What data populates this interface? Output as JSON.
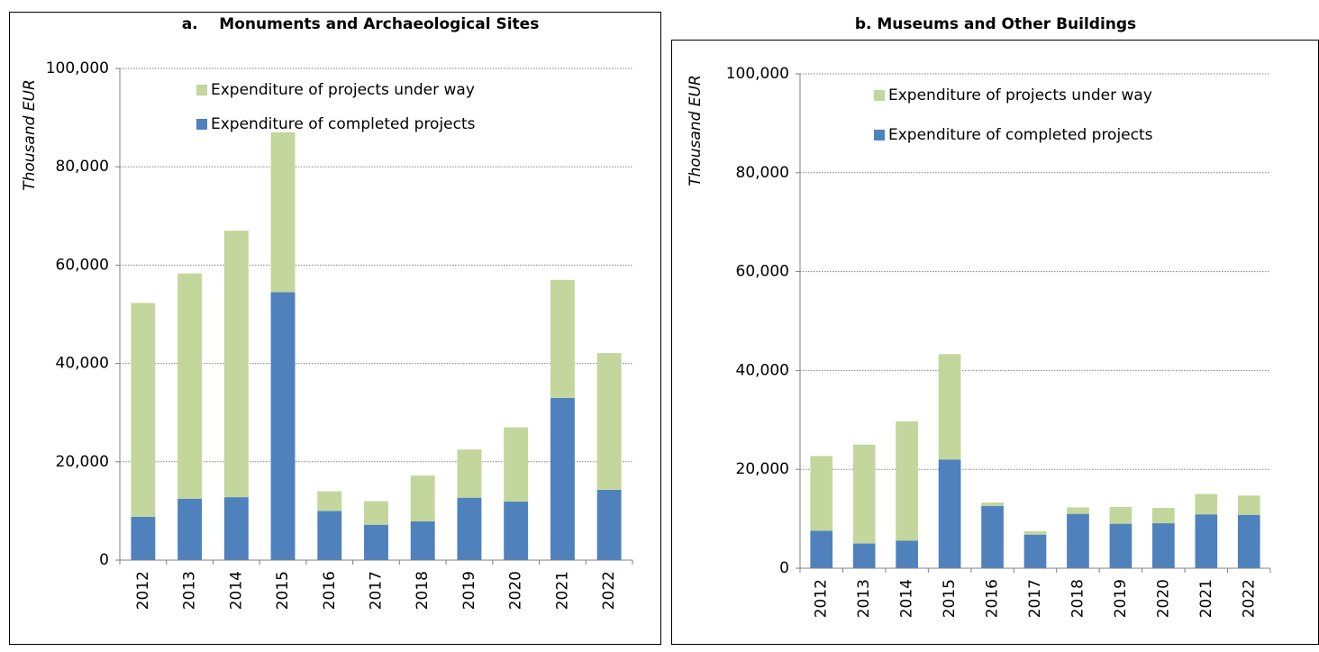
{
  "chart_data": [
    {
      "type": "stacked_bar",
      "title": "a.    Monuments and Archaeological Sites",
      "y_label": "Thousand EUR",
      "categories": [
        "2012",
        "2013",
        "2014",
        "2015",
        "2016",
        "2017",
        "2018",
        "2019",
        "2020",
        "2021",
        "2022"
      ],
      "series": [
        {
          "name": "Expenditure of completed projects",
          "color": "#4f81bd",
          "values": [
            8800,
            12500,
            12800,
            54500,
            10000,
            7200,
            7900,
            12700,
            11900,
            33000,
            14300
          ]
        },
        {
          "name": "Expenditure of projects under way",
          "color": "#c3d69b",
          "values": [
            43500,
            45800,
            54200,
            32500,
            4000,
            4800,
            9300,
            9800,
            15100,
            24000,
            27800
          ]
        }
      ],
      "ylim": [
        0,
        100000
      ],
      "yticks": [
        0,
        {
          "value": 20000,
          "label": "20,000"
        },
        {
          "value": 40000,
          "label": "40,000"
        },
        {
          "value": 60000,
          "label": "60,000"
        },
        {
          "value": 80000,
          "label": "80,000"
        },
        {
          "value": 100000,
          "label": "100,000"
        }
      ],
      "grid": true,
      "legend": "top"
    },
    {
      "type": "stacked_bar",
      "title": "b. Museums and Other Buildings",
      "y_label": "Thousand EUR",
      "categories": [
        "2012",
        "2013",
        "2014",
        "2015",
        "2016",
        "2017",
        "2018",
        "2019",
        "2020",
        "2021",
        "2022"
      ],
      "series": [
        {
          "name": "Expenditure of completed projects",
          "color": "#4f81bd",
          "values": [
            7600,
            5000,
            5600,
            22000,
            12600,
            6800,
            11000,
            9000,
            9100,
            10900,
            10800
          ]
        },
        {
          "name": "Expenditure of projects under way",
          "color": "#c3d69b",
          "values": [
            15100,
            20000,
            24100,
            21300,
            700,
            700,
            1300,
            3400,
            3100,
            4100,
            3900
          ]
        }
      ],
      "ylim": [
        0,
        100000
      ],
      "yticks": [
        0,
        {
          "value": 20000,
          "label": "20,000"
        },
        {
          "value": 40000,
          "label": "40,000"
        },
        {
          "value": 60000,
          "label": "60,000"
        },
        {
          "value": 80000,
          "label": "80,000"
        },
        {
          "value": 100000,
          "label": "100,000"
        }
      ],
      "grid": true,
      "legend": "top"
    }
  ]
}
